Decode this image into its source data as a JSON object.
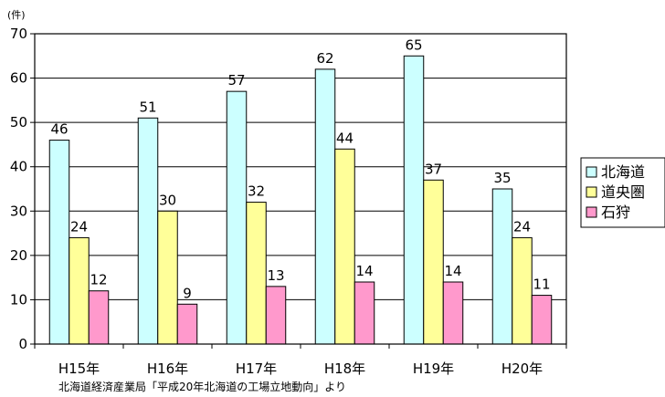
{
  "chart_data": {
    "type": "bar",
    "unit_label": "(件)",
    "categories": [
      "H15年",
      "H16年",
      "H17年",
      "H18年",
      "H19年",
      "H20年"
    ],
    "series": [
      {
        "name": "北海道",
        "color": "#ccffff",
        "values": [
          46,
          51,
          57,
          62,
          65,
          35
        ]
      },
      {
        "name": "道央圏",
        "color": "#ffff99",
        "values": [
          24,
          30,
          32,
          44,
          37,
          24
        ]
      },
      {
        "name": "石狩",
        "color": "#ff99cc",
        "values": [
          12,
          9,
          13,
          14,
          14,
          11
        ]
      }
    ],
    "ylim": [
      0,
      70
    ],
    "yticks": [
      0,
      10,
      20,
      30,
      40,
      50,
      60,
      70
    ],
    "grid": true,
    "legend_position": "right",
    "source_note": "北海道経済産業局「平成20年北海道の工場立地動向」より"
  }
}
